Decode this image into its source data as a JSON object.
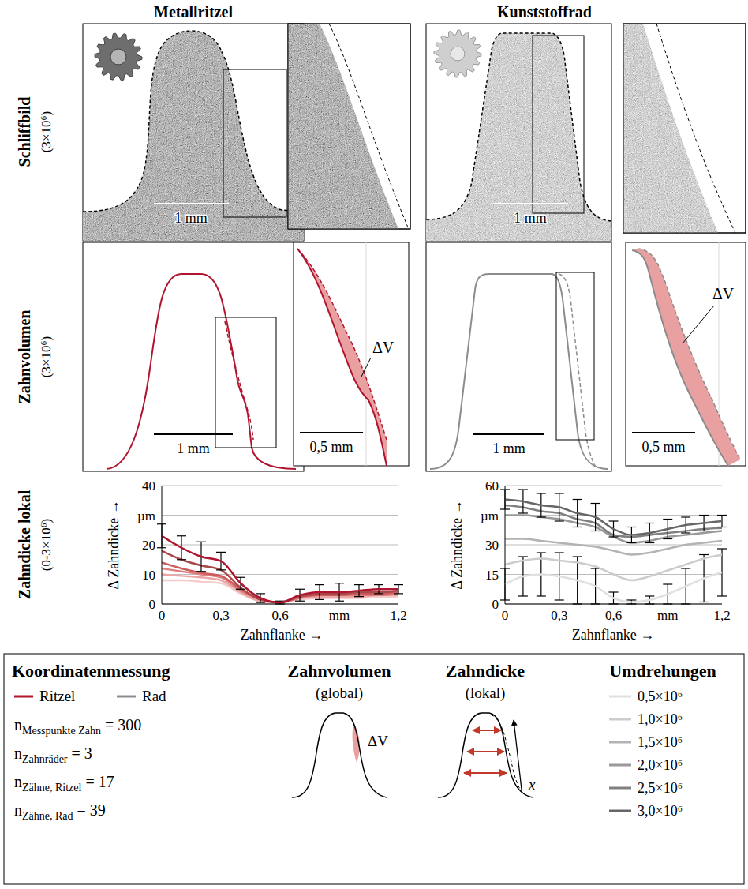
{
  "figure": {
    "columns": [
      "Metallritzel",
      "Kunststoffrad"
    ],
    "rows": [
      {
        "label": "Schliffbild",
        "sub": "(3×10⁶)"
      },
      {
        "label": "Zahnvolumen",
        "sub": "(3×10⁶)"
      },
      {
        "label": "Zahndicke lokal",
        "sub": "(0-3×10⁶)"
      }
    ],
    "scale_main": "1 mm",
    "scale_inset": "0,5 mm",
    "delta_v": "ΔV"
  },
  "chart_data": [
    {
      "type": "line",
      "x_label": "Zahnflanke →",
      "y_label": "Δ Zahndicke →",
      "grid": true,
      "x": [
        0,
        0.1,
        0.2,
        0.3,
        0.4,
        0.5,
        0.6,
        0.7,
        0.8,
        0.9,
        1.0,
        1.1,
        1.2
      ],
      "xlim": [
        0,
        1.2
      ],
      "xticks": [
        0,
        {
          "value": 0.3,
          "label": "0,3"
        },
        {
          "value": 0.6,
          "label": "0,6"
        },
        {
          "value": 0.9,
          "label": "mm"
        },
        {
          "value": 1.2,
          "label": "1,2"
        }
      ],
      "ylim": [
        0,
        40
      ],
      "yticks": [
        0,
        10,
        20,
        {
          "value": 30,
          "label": "µm"
        },
        40
      ],
      "series": [
        {
          "name": "0,5×10⁶",
          "color": "#f4cccc",
          "values": [
            8,
            8,
            7.5,
            7,
            3.5,
            1,
            0.5,
            1.5,
            2,
            2,
            2,
            2.5,
            2.5
          ]
        },
        {
          "name": "1,0×10⁶",
          "color": "#eba6a6",
          "values": [
            10,
            9.5,
            9,
            8,
            4,
            1,
            0.5,
            2,
            2.5,
            2.5,
            2.5,
            3,
            3
          ]
        },
        {
          "name": "1,5×10⁶",
          "color": "#df8080",
          "values": [
            12,
            11,
            10,
            9,
            4.5,
            1.5,
            0.5,
            2,
            3,
            3,
            3,
            3,
            3.5
          ]
        },
        {
          "name": "2,0×10⁶",
          "color": "#cc5c5c",
          "values": [
            14,
            12,
            10.5,
            9.5,
            5,
            1.5,
            0.5,
            2.5,
            3,
            3,
            3.5,
            3.5,
            4
          ]
        },
        {
          "name": "2,5×10⁶",
          "color": "#a84a4a",
          "values": [
            18,
            15,
            13,
            11.5,
            5.5,
            1.5,
            0.5,
            2.5,
            3.5,
            3.5,
            4,
            4,
            4.5
          ]
        },
        {
          "name": "3,0×10⁶",
          "color": "#b01530",
          "values": [
            23,
            19,
            16,
            14.5,
            7,
            2,
            0.5,
            3,
            4,
            4,
            4.5,
            5,
            5
          ],
          "errors": [
            4,
            4,
            5,
            3,
            2,
            1.5,
            0.5,
            2,
            2.5,
            3,
            2,
            1.5,
            1.5
          ]
        }
      ]
    },
    {
      "type": "line",
      "x_label": "Zahnflanke →",
      "y_label": "Δ Zahndicke →",
      "grid": true,
      "x": [
        0,
        0.1,
        0.2,
        0.3,
        0.4,
        0.5,
        0.6,
        0.7,
        0.8,
        0.9,
        1.0,
        1.1,
        1.2
      ],
      "xlim": [
        0,
        1.2
      ],
      "xticks": [
        0,
        {
          "value": 0.3,
          "label": "0,3"
        },
        {
          "value": 0.6,
          "label": "0,6"
        },
        {
          "value": 0.9,
          "label": "mm"
        },
        {
          "value": 1.2,
          "label": "1,2"
        }
      ],
      "ylim": [
        0,
        60
      ],
      "yticks": [
        0,
        15,
        30,
        {
          "value": 45,
          "label": "µm"
        },
        60
      ],
      "series": [
        {
          "name": "0,5×10⁶",
          "color": "#e0e0e0",
          "values": [
            10,
            14,
            15,
            14,
            12,
            9,
            3,
            1,
            2,
            5,
            9,
            13,
            16
          ],
          "errors": [
            8,
            10,
            11,
            12,
            12,
            9,
            3,
            1,
            2,
            5,
            9,
            12,
            12
          ]
        },
        {
          "name": "1,0×10⁶",
          "color": "#cccccc",
          "values": [
            20,
            22,
            23,
            22,
            21,
            19,
            15,
            12,
            14,
            17,
            20,
            23,
            25
          ]
        },
        {
          "name": "1,5×10⁶",
          "color": "#b3b3b3",
          "values": [
            33,
            33,
            32,
            31,
            30,
            29,
            27,
            25,
            26,
            28,
            30,
            31,
            32
          ]
        },
        {
          "name": "2,0×10⁶",
          "color": "#999999",
          "values": [
            45,
            45,
            44,
            43,
            41,
            39,
            34,
            31,
            32,
            34,
            35,
            36,
            37
          ]
        },
        {
          "name": "2,5×10⁶",
          "color": "#808080",
          "values": [
            50,
            49,
            47,
            46,
            43,
            41,
            35,
            34,
            35,
            36,
            37,
            38,
            38.5
          ]
        },
        {
          "name": "3,0×10⁶",
          "color": "#666666",
          "values": [
            53,
            52,
            50,
            49,
            46,
            44,
            38,
            35,
            36,
            38,
            40,
            41,
            42
          ],
          "errors": [
            5,
            6,
            6,
            7,
            7,
            7,
            4,
            4,
            5,
            5,
            4,
            4,
            3
          ]
        }
      ]
    }
  ],
  "legend_box": {
    "measurement": {
      "title": "Koordinatenmessung",
      "lines": [
        {
          "name": "Ritzel",
          "color": "#b01530"
        },
        {
          "name": "Rad",
          "color": "#8c8c8c"
        }
      ],
      "counts": [
        {
          "symbol": "n",
          "subscript": "Messpunkte Zahn",
          "relation": "=",
          "value": 300
        },
        {
          "symbol": "n",
          "subscript": "Zahnräder",
          "relation": "=",
          "value": 3
        },
        {
          "symbol": "n",
          "subscript": "Zähne, Ritzel",
          "relation": "=",
          "value": 17
        },
        {
          "symbol": "n",
          "subscript": "Zähne, Rad",
          "relation": "=",
          "value": 39
        }
      ]
    },
    "volume": {
      "title": "Zahnvolumen",
      "subtitle": "(global)",
      "label": "ΔV"
    },
    "thickness": {
      "title": "Zahndicke",
      "subtitle": "(lokal)",
      "label": "x"
    },
    "revolutions": {
      "title": "Umdrehungen"
    }
  }
}
